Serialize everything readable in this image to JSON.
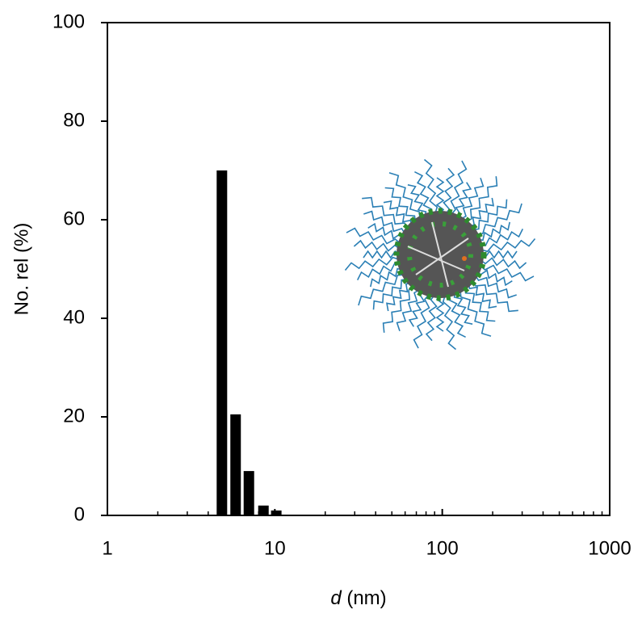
{
  "chart_data": {
    "type": "bar",
    "x_label": "d (nm)",
    "y_label": "No. rel (%)",
    "x": [
      4.83,
      5.83,
      7.0,
      8.55,
      10.2
    ],
    "values": [
      70,
      20.5,
      9,
      2,
      1
    ],
    "color": "#000000",
    "xscale": "log",
    "xlim": [
      1,
      1000
    ],
    "xticks": [
      1,
      10,
      100,
      1000
    ],
    "xminor_ticks": [
      2,
      3,
      4,
      5,
      6,
      7,
      8,
      9,
      20,
      30,
      40,
      50,
      60,
      70,
      80,
      90,
      200,
      300,
      400,
      500,
      600,
      700,
      800,
      900
    ],
    "ylim": [
      0,
      100
    ],
    "yticks": [
      0,
      20,
      40,
      60,
      80,
      100
    ],
    "grid": false
  }
}
